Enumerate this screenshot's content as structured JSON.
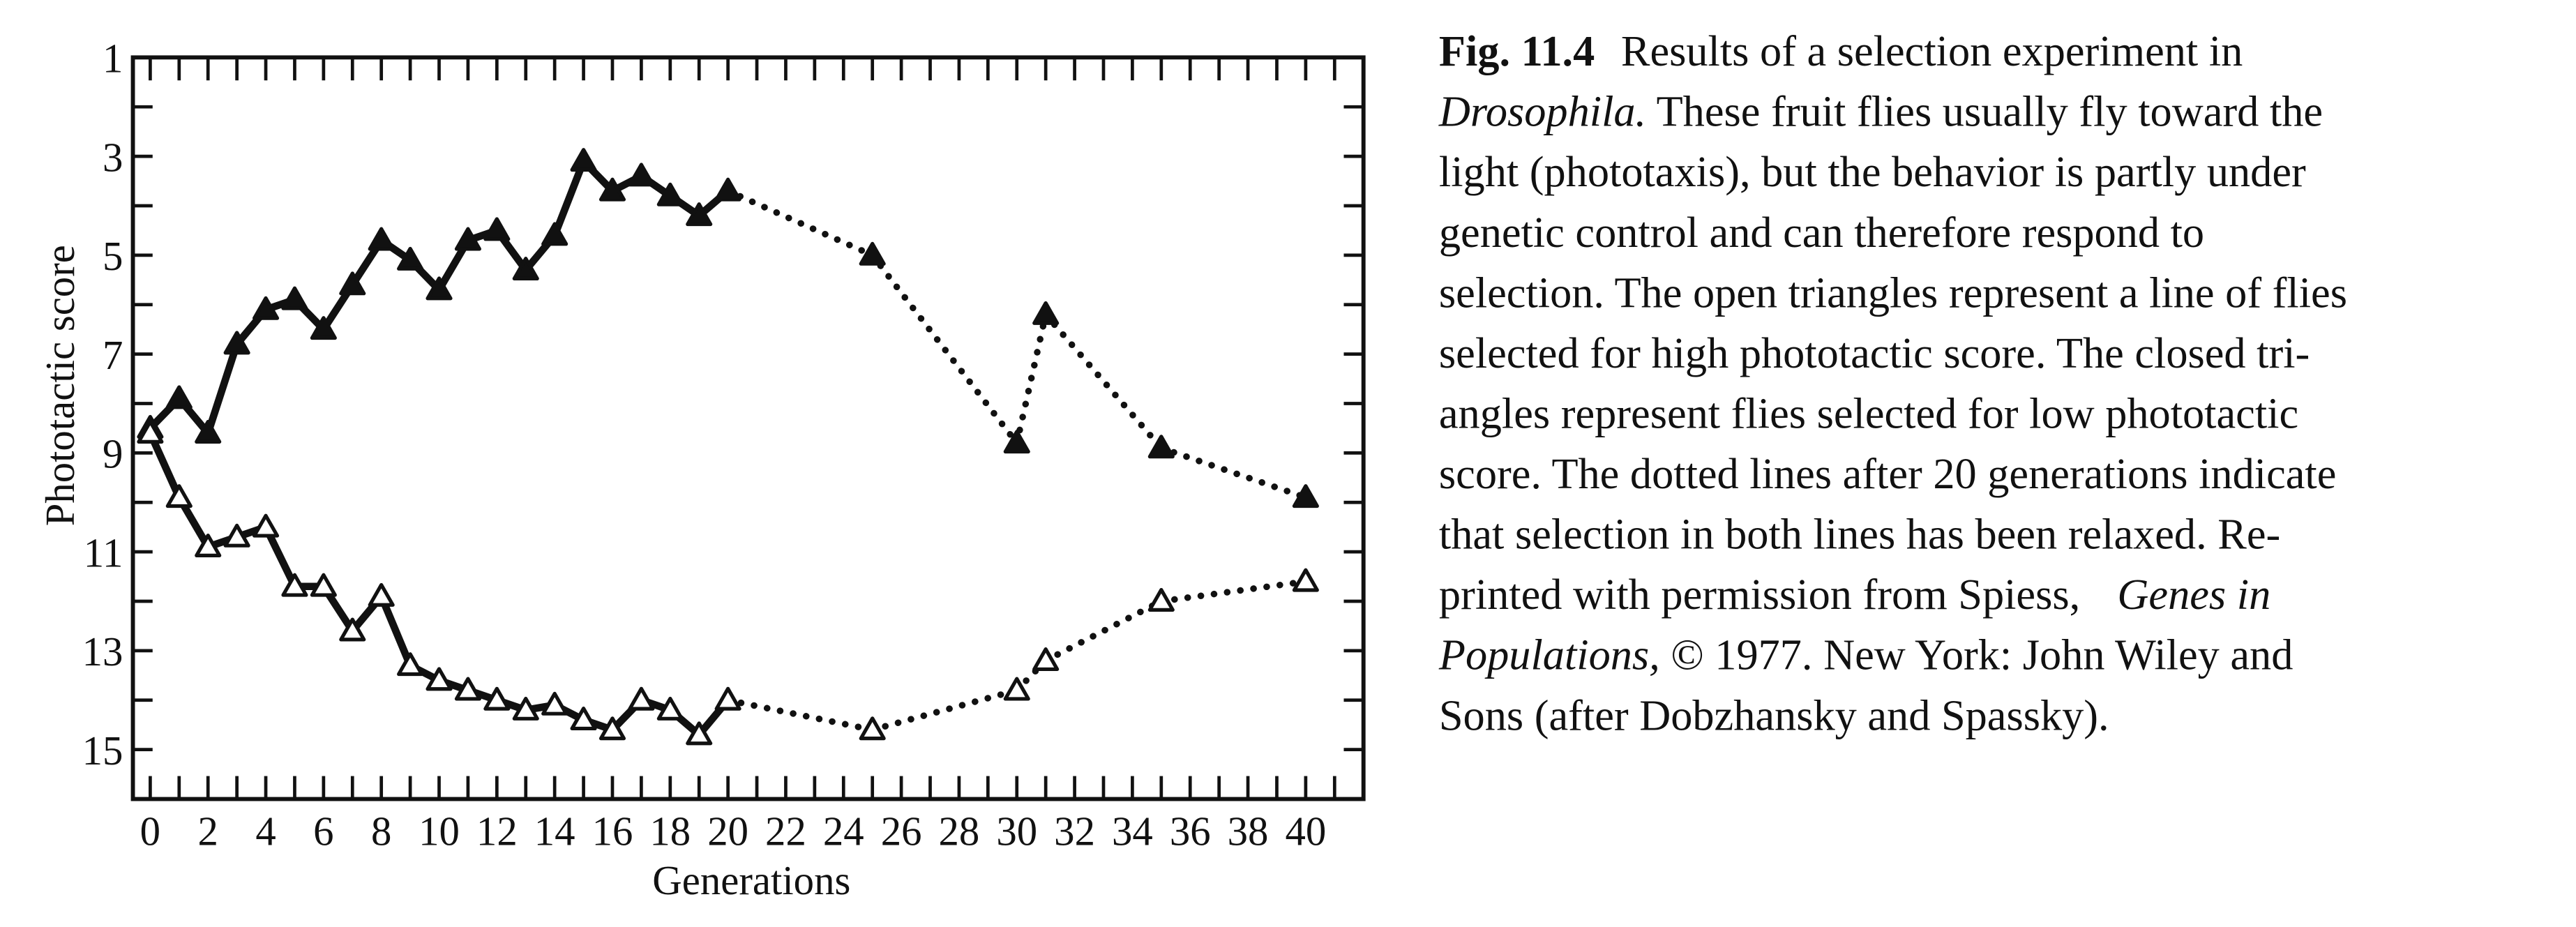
{
  "chart_data": {
    "type": "line",
    "x_label": "Generations",
    "y_label": "Phototactic score",
    "xlim": [
      -0.6,
      42
    ],
    "ylim": [
      16,
      1
    ],
    "xticks": [
      0,
      2,
      4,
      6,
      8,
      10,
      12,
      14,
      16,
      18,
      20,
      22,
      24,
      26,
      28,
      30,
      32,
      34,
      36,
      38,
      40
    ],
    "xminor_ticks": [
      1,
      3,
      5,
      7,
      9,
      11,
      13,
      15,
      17,
      19,
      21,
      23,
      25,
      27,
      29,
      31,
      33,
      35,
      37,
      39,
      41
    ],
    "yticks": [
      1,
      3,
      5,
      7,
      9,
      11,
      13,
      15
    ],
    "yminor_ticks": [
      2,
      4,
      6,
      8,
      10,
      12,
      14,
      16
    ],
    "dotted_after_x": 20,
    "color": "#111111",
    "series": [
      {
        "marker": "closed-triangle",
        "x": [
          0,
          1,
          2,
          3,
          4,
          5,
          6,
          7,
          8,
          9,
          10,
          11,
          12,
          13,
          14,
          15,
          16,
          17,
          18,
          19,
          20,
          25,
          30,
          31,
          35,
          40
        ],
        "values": [
          8.5,
          7.9,
          8.6,
          6.8,
          6.1,
          5.9,
          6.5,
          5.6,
          4.7,
          5.1,
          5.7,
          4.7,
          4.5,
          5.3,
          4.6,
          3.1,
          3.7,
          3.4,
          3.8,
          4.2,
          3.7,
          5.0,
          8.8,
          6.2,
          8.9,
          9.9
        ]
      },
      {
        "marker": "open-triangle",
        "x": [
          0,
          1,
          2,
          3,
          4,
          5,
          6,
          7,
          8,
          9,
          10,
          11,
          12,
          13,
          14,
          15,
          16,
          17,
          18,
          19,
          20,
          25,
          30,
          31,
          35,
          40
        ],
        "values": [
          8.6,
          9.9,
          10.9,
          10.7,
          10.5,
          11.7,
          11.7,
          12.6,
          11.9,
          13.3,
          13.6,
          13.8,
          14.0,
          14.2,
          14.1,
          14.4,
          14.6,
          14.0,
          14.2,
          14.7,
          14.0,
          14.6,
          13.8,
          13.2,
          12.0,
          11.6
        ]
      }
    ]
  },
  "caption": {
    "lines": [
      [
        {
          "text": "Fig. 11.4",
          "bold": true
        },
        "Results of a selection experiment in"
      ],
      [
        {
          "text": "Drosophila.",
          "italic": true
        },
        " These fruit flies usually fly toward the"
      ],
      [
        "light (phototaxis), but the behavior is partly under"
      ],
      [
        "genetic control and can therefore respond to"
      ],
      [
        "selection. The open triangles represent a line of flies"
      ],
      [
        "selected for high phototactic score. The closed tri-"
      ],
      [
        "angles represent flies selected for low phototactic"
      ],
      [
        "score. The dotted lines after 20 generations indicate"
      ],
      [
        "that selection in both lines has been relaxed. Re-"
      ],
      [
        "printed with permission from Spiess, ",
        {
          "text": "Genes in",
          "italic": true
        }
      ],
      [
        {
          "text": "Populations,",
          "italic": true
        },
        " © 1977. New York: John Wiley and"
      ],
      [
        "Sons (after Dobzhansky and Spassky)."
      ]
    ]
  }
}
